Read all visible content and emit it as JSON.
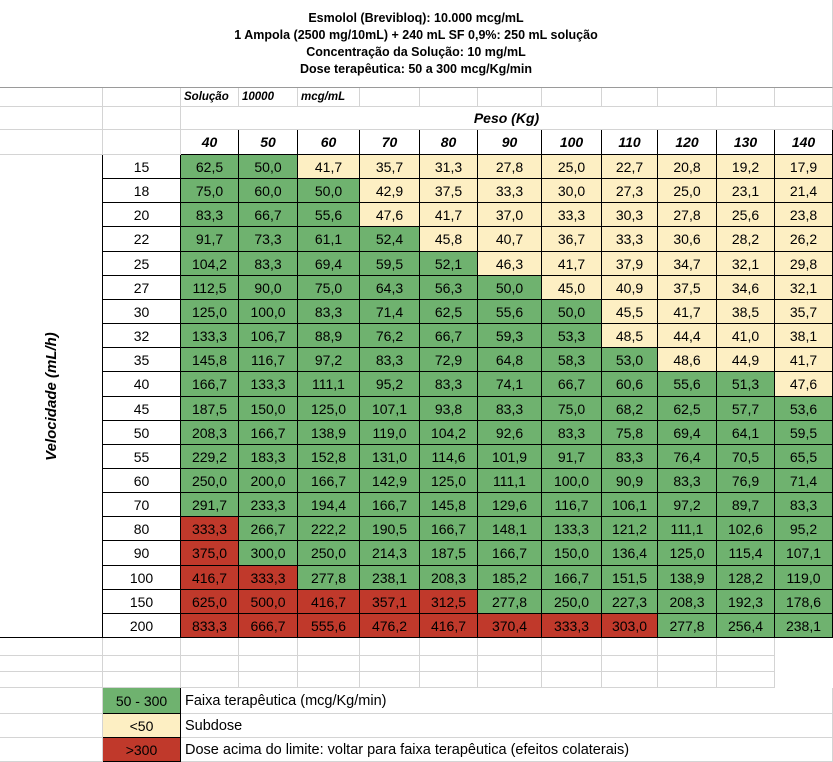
{
  "header": {
    "line1": "Esmolol (Brevibloq): 10.000 mcg/mL",
    "line2": "1 Ampola (2500 mg/10mL) + 240 mL SF 0,9%: 250 mL solução",
    "line3": "Concentração da Solução: 10 mg/mL",
    "line4": "Dose terapêutica: 50 a 300 mcg/Kg/min"
  },
  "solution_row": {
    "label": "Solução",
    "value": "10000",
    "unit": "mcg/mL"
  },
  "peso_label": "Peso (Kg)",
  "velocidade_label": "Velocidade (mL/h)",
  "weights": [
    "40",
    "50",
    "60",
    "70",
    "80",
    "90",
    "100",
    "110",
    "120",
    "130",
    "140"
  ],
  "rates": [
    "15",
    "18",
    "20",
    "22",
    "25",
    "27",
    "30",
    "32",
    "35",
    "40",
    "45",
    "50",
    "55",
    "60",
    "70",
    "80",
    "90",
    "100",
    "150",
    "200"
  ],
  "values": [
    [
      "62,5",
      "50,0",
      "41,7",
      "35,7",
      "31,3",
      "27,8",
      "25,0",
      "22,7",
      "20,8",
      "19,2",
      "17,9"
    ],
    [
      "75,0",
      "60,0",
      "50,0",
      "42,9",
      "37,5",
      "33,3",
      "30,0",
      "27,3",
      "25,0",
      "23,1",
      "21,4"
    ],
    [
      "83,3",
      "66,7",
      "55,6",
      "47,6",
      "41,7",
      "37,0",
      "33,3",
      "30,3",
      "27,8",
      "25,6",
      "23,8"
    ],
    [
      "91,7",
      "73,3",
      "61,1",
      "52,4",
      "45,8",
      "40,7",
      "36,7",
      "33,3",
      "30,6",
      "28,2",
      "26,2"
    ],
    [
      "104,2",
      "83,3",
      "69,4",
      "59,5",
      "52,1",
      "46,3",
      "41,7",
      "37,9",
      "34,7",
      "32,1",
      "29,8"
    ],
    [
      "112,5",
      "90,0",
      "75,0",
      "64,3",
      "56,3",
      "50,0",
      "45,0",
      "40,9",
      "37,5",
      "34,6",
      "32,1"
    ],
    [
      "125,0",
      "100,0",
      "83,3",
      "71,4",
      "62,5",
      "55,6",
      "50,0",
      "45,5",
      "41,7",
      "38,5",
      "35,7"
    ],
    [
      "133,3",
      "106,7",
      "88,9",
      "76,2",
      "66,7",
      "59,3",
      "53,3",
      "48,5",
      "44,4",
      "41,0",
      "38,1"
    ],
    [
      "145,8",
      "116,7",
      "97,2",
      "83,3",
      "72,9",
      "64,8",
      "58,3",
      "53,0",
      "48,6",
      "44,9",
      "41,7"
    ],
    [
      "166,7",
      "133,3",
      "111,1",
      "95,2",
      "83,3",
      "74,1",
      "66,7",
      "60,6",
      "55,6",
      "51,3",
      "47,6"
    ],
    [
      "187,5",
      "150,0",
      "125,0",
      "107,1",
      "93,8",
      "83,3",
      "75,0",
      "68,2",
      "62,5",
      "57,7",
      "53,6"
    ],
    [
      "208,3",
      "166,7",
      "138,9",
      "119,0",
      "104,2",
      "92,6",
      "83,3",
      "75,8",
      "69,4",
      "64,1",
      "59,5"
    ],
    [
      "229,2",
      "183,3",
      "152,8",
      "131,0",
      "114,6",
      "101,9",
      "91,7",
      "83,3",
      "76,4",
      "70,5",
      "65,5"
    ],
    [
      "250,0",
      "200,0",
      "166,7",
      "142,9",
      "125,0",
      "111,1",
      "100,0",
      "90,9",
      "83,3",
      "76,9",
      "71,4"
    ],
    [
      "291,7",
      "233,3",
      "194,4",
      "166,7",
      "145,8",
      "129,6",
      "116,7",
      "106,1",
      "97,2",
      "89,7",
      "83,3"
    ],
    [
      "333,3",
      "266,7",
      "222,2",
      "190,5",
      "166,7",
      "148,1",
      "133,3",
      "121,2",
      "111,1",
      "102,6",
      "95,2"
    ],
    [
      "375,0",
      "300,0",
      "250,0",
      "214,3",
      "187,5",
      "166,7",
      "150,0",
      "136,4",
      "125,0",
      "115,4",
      "107,1"
    ],
    [
      "416,7",
      "333,3",
      "277,8",
      "238,1",
      "208,3",
      "185,2",
      "166,7",
      "151,5",
      "138,9",
      "128,2",
      "119,0"
    ],
    [
      "625,0",
      "500,0",
      "416,7",
      "357,1",
      "312,5",
      "277,8",
      "250,0",
      "227,3",
      "208,3",
      "192,3",
      "178,6"
    ],
    [
      "833,3",
      "666,7",
      "555,6",
      "476,2",
      "416,7",
      "370,4",
      "333,3",
      "303,0",
      "277,8",
      "256,4",
      "238,1"
    ]
  ],
  "colors": {
    "green": "#6fb26f",
    "yellow": "#fdefc3",
    "red": "#c0392b"
  },
  "legend": [
    {
      "swatch": "50 - 300",
      "text": "Faixa terapêutica (mcg/Kg/min)",
      "color": "green"
    },
    {
      "swatch": "<50",
      "text": "Subdose",
      "color": "yellow"
    },
    {
      "swatch": ">300",
      "text": "Dose acima do limite: voltar para faixa terapêutica (efeitos colaterais)",
      "color": "red"
    }
  ]
}
